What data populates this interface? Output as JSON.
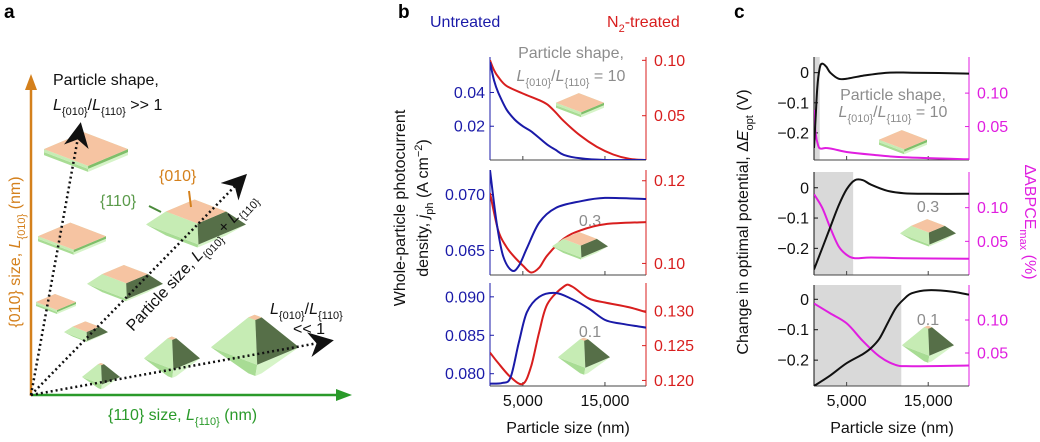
{
  "colors": {
    "blue": "#1a1aa8",
    "red": "#d81e1e",
    "magenta": "#e01ee0",
    "black": "#111111",
    "gray_text": "#8c8c8c",
    "orange": "#d4801c",
    "green": "#2a9a2a",
    "shade": "#d9d9d9",
    "peach": "#f6c4a2",
    "light_green": "#c6ecb4",
    "dark_green": "#566f48"
  },
  "panels": {
    "a": "a",
    "b": "b",
    "c": "c"
  },
  "panel_a": {
    "y_axis_label": [
      [
        "{010} size, ",
        ""
      ],
      [
        "L",
        "i"
      ],
      [
        "{010}",
        "sub"
      ],
      [
        " (nm)",
        ""
      ]
    ],
    "x_axis_label": [
      [
        "{110} size, ",
        ""
      ],
      [
        "L",
        "i"
      ],
      [
        "{110}",
        "sub"
      ],
      [
        " (nm)",
        ""
      ]
    ],
    "shape_title": "Particle shape,",
    "ratio_high": [
      [
        "L",
        "i"
      ],
      [
        "{010}",
        "sub"
      ],
      [
        "/",
        ""
      ],
      [
        "L",
        "i"
      ],
      [
        "{110}",
        "sub"
      ],
      [
        " >> 1",
        ""
      ]
    ],
    "facet_010": "{010}",
    "facet_110": "{110}",
    "size_arrow_label": [
      [
        "Particle size, ",
        ""
      ],
      [
        "L",
        "i"
      ],
      [
        "{010}",
        "sub"
      ],
      [
        " + ",
        ""
      ],
      [
        "L",
        "i"
      ],
      [
        "{110}",
        "sub"
      ]
    ],
    "ratio_low_1": [
      [
        "L",
        "i"
      ],
      [
        "{010}",
        "sub"
      ],
      [
        "/",
        ""
      ],
      [
        "L",
        "i"
      ],
      [
        "{110}",
        "sub"
      ]
    ],
    "ratio_low_2": "<< 1"
  },
  "chart_data": [
    {
      "panel": "b",
      "type": "line",
      "legend": [
        "Untreated",
        "N2-treated"
      ],
      "legend_rich": [
        [
          [
            "Untreated",
            ""
          ]
        ],
        [
          [
            "N",
            ""
          ],
          [
            "2",
            "sub"
          ],
          [
            "-treated",
            ""
          ]
        ]
      ],
      "ylabel_line1": "Whole-particle photocurrent",
      "ylabel_line2": [
        [
          "density, ",
          ""
        ],
        [
          "j",
          "i"
        ],
        [
          "ph",
          "sub"
        ],
        [
          " (A cm",
          ""
        ],
        [
          "−2",
          "sup"
        ],
        [
          ")",
          ""
        ]
      ],
      "xlabel": "Particle size (nm)",
      "xlim": [
        1000,
        20000
      ],
      "xticks": [
        5000,
        15000
      ],
      "xtick_labels": [
        "5,000",
        "15,000"
      ],
      "shape_title": "Particle shape,",
      "shape_ratio": [
        [
          "L",
          "i"
        ],
        [
          "{010}",
          "sub"
        ],
        [
          "/",
          ""
        ],
        [
          "L",
          "i"
        ],
        [
          "{110}",
          "sub"
        ],
        [
          " = 10",
          ""
        ]
      ],
      "subplots": [
        {
          "shape_ratio_value": "10",
          "left": {
            "name": "Untreated",
            "ylim": [
              0,
              0.061
            ],
            "ticks": [
              0.02,
              0.04
            ],
            "tick_labels": [
              "0.02",
              "0.04"
            ]
          },
          "right": {
            "name": "N2-treated",
            "ylim": [
              0.01,
              0.103
            ],
            "ticks": [
              0.05,
              0.1
            ],
            "tick_labels": [
              "0.05",
              "0.10"
            ]
          },
          "left_series": {
            "x": [
              1000,
              1500,
              2000,
              3000,
              4000,
              5000,
              6000,
              7000,
              8000,
              9000,
              10000,
              12000,
              15000,
              20000
            ],
            "y": [
              0.058,
              0.047,
              0.04,
              0.03,
              0.024,
              0.02,
              0.017,
              0.013,
              0.009,
              0.006,
              0.003,
              0.001,
              0.0,
              0.0
            ]
          },
          "right_series": {
            "x": [
              1000,
              1500,
              2000,
              3000,
              5000,
              7000,
              8000,
              9000,
              10000,
              12000,
              14000,
              16000,
              18000,
              20000
            ],
            "y": [
              0.1,
              0.091,
              0.085,
              0.077,
              0.07,
              0.064,
              0.06,
              0.053,
              0.045,
              0.032,
              0.022,
              0.015,
              0.011,
              0.01
            ]
          }
        },
        {
          "shape_ratio_value": "0.3",
          "left": {
            "name": "Untreated",
            "ylim": [
              0.0628,
              0.0722
            ],
            "ticks": [
              0.065,
              0.07
            ],
            "tick_labels": [
              "0.065",
              "0.070"
            ]
          },
          "right": {
            "name": "N2-treated",
            "ylim": [
              0.0972,
              0.1226
            ],
            "ticks": [
              0.1,
              0.12
            ],
            "tick_labels": [
              "0.10",
              "0.12"
            ]
          },
          "left_series": {
            "x": [
              1000,
              1800,
              2600,
              3650,
              4500,
              5500,
              7000,
              9000,
              12000,
              15000,
              20000
            ],
            "y": [
              0.0722,
              0.0675,
              0.0645,
              0.0632,
              0.0636,
              0.0652,
              0.0675,
              0.0688,
              0.0694,
              0.0697,
              0.0696
            ]
          },
          "right_series": {
            "x": [
              1000,
              2000,
              3000,
              4000,
              5000,
              6000,
              7000,
              8000,
              10000,
              12000,
              15000,
              20000
            ],
            "y": [
              0.117,
              0.108,
              0.104,
              0.1015,
              0.0995,
              0.0978,
              0.099,
              0.102,
              0.106,
              0.108,
              0.1095,
              0.11
            ]
          }
        },
        {
          "shape_ratio_value": "0.1",
          "left": {
            "name": "Untreated",
            "ylim": [
              0.0784,
              0.0918
            ],
            "ticks": [
              0.08,
              0.085,
              0.09
            ],
            "tick_labels": [
              "0.080",
              "0.085",
              "0.090"
            ]
          },
          "right": {
            "name": "N2-treated",
            "ylim": [
              0.1192,
              0.134
            ],
            "ticks": [
              0.12,
              0.125,
              0.13
            ],
            "tick_labels": [
              "0.120",
              "0.125",
              "0.130"
            ]
          },
          "left_series": {
            "x": [
              1000,
              2500,
              3500,
              4500,
              5500,
              7000,
              9000,
              11000,
              13000,
              15000,
              17000,
              20000
            ],
            "y": [
              0.0787,
              0.0788,
              0.0795,
              0.084,
              0.088,
              0.09,
              0.0905,
              0.0897,
              0.0885,
              0.087,
              0.0865,
              0.086
            ]
          },
          "right_series": {
            "x": [
              1000,
              2000,
              3500,
              5000,
              6000,
              7000,
              8000,
              10000,
              11000,
              13000,
              15000,
              18000,
              20000
            ],
            "y": [
              0.124,
              0.1225,
              0.1205,
              0.1195,
              0.122,
              0.127,
              0.131,
              0.1335,
              0.1335,
              0.1318,
              0.1312,
              0.1305,
              0.1298
            ]
          }
        }
      ]
    },
    {
      "panel": "c",
      "type": "line",
      "ylabel_left": [
        [
          "Change in optimal potential, Δ",
          ""
        ],
        [
          "E",
          "i"
        ],
        [
          "opt",
          "sub"
        ],
        [
          " (V)",
          ""
        ]
      ],
      "ylabel_right": [
        [
          "ΔABPCE",
          ""
        ],
        [
          "max",
          "sub"
        ],
        [
          " (%)",
          ""
        ]
      ],
      "xlabel": "Particle size (nm)",
      "xlim": [
        1000,
        20000
      ],
      "xticks": [
        5000,
        15000
      ],
      "xtick_labels": [
        "5,000",
        "15,000"
      ],
      "shape_title": "Particle shape,",
      "shape_ratio": [
        [
          "L",
          "i"
        ],
        [
          "{010}",
          "sub"
        ],
        [
          "/",
          ""
        ],
        [
          "L",
          "i"
        ],
        [
          "{110}",
          "sub"
        ],
        [
          " = 10",
          ""
        ]
      ],
      "subplots": [
        {
          "shape_ratio_value": "10",
          "shade_until": 1700,
          "left": {
            "name": "ΔE_opt",
            "ylim": [
              -0.29,
              0.052
            ],
            "ticks": [
              -0.2,
              -0.1,
              0
            ],
            "tick_labels": [
              "−0.2",
              "−0.1",
              "0"
            ]
          },
          "right": {
            "name": "ΔABPCE_max",
            "ylim": [
              0,
              0.154
            ],
            "ticks": [
              0.05,
              0.1
            ],
            "tick_labels": [
              "0.05",
              "0.10"
            ]
          },
          "left_series": {
            "x": [
              1000,
              1200,
              1400,
              1700,
              2000,
              2500,
              3000,
              4000,
              5000,
              7000,
              10000,
              13000,
              20000
            ],
            "y": [
              -0.25,
              -0.15,
              -0.05,
              0.015,
              0.03,
              0.02,
              0.0,
              -0.02,
              -0.02,
              -0.01,
              0.0,
              0.0,
              -0.003
            ]
          },
          "right_series": {
            "x": [
              1000,
              1200,
              1500,
              1800,
              2500,
              3500,
              5000,
              8000,
              12000,
              20000
            ],
            "y": [
              0.075,
              0.04,
              0.022,
              0.017,
              0.018,
              0.016,
              0.012,
              0.008,
              0.004,
              0.001
            ]
          }
        },
        {
          "shape_ratio_value": "0.3",
          "shade_until": 5800,
          "left": {
            "name": "ΔE_opt",
            "ylim": [
              -0.288,
              0.052
            ],
            "ticks": [
              -0.2,
              -0.1,
              0
            ],
            "tick_labels": [
              "−0.2",
              "−0.1",
              "0"
            ]
          },
          "right": {
            "name": "ΔABPCE_max",
            "ylim": [
              0,
              0.153
            ],
            "ticks": [
              0.05,
              0.1
            ],
            "tick_labels": [
              "0.05",
              "0.10"
            ]
          },
          "left_series": {
            "x": [
              1000,
              2000,
              3000,
              4000,
              5000,
              6000,
              7000,
              8000,
              10000,
              12000,
              15000,
              20000
            ],
            "y": [
              -0.27,
              -0.2,
              -0.13,
              -0.06,
              -0.005,
              0.025,
              0.025,
              0.01,
              -0.01,
              -0.018,
              -0.02,
              -0.02
            ]
          },
          "right_series": {
            "x": [
              1000,
              2000,
              3000,
              4000,
              5000,
              6000,
              8000,
              12000,
              20000
            ],
            "y": [
              0.12,
              0.1,
              0.07,
              0.043,
              0.03,
              0.025,
              0.026,
              0.025,
              0.024
            ]
          }
        },
        {
          "shape_ratio_value": "0.1",
          "shade_until": 11700,
          "left": {
            "name": "ΔE_opt",
            "ylim": [
              -0.285,
              0.047
            ],
            "ticks": [
              -0.2,
              -0.1,
              0
            ],
            "tick_labels": [
              "−0.2",
              "−0.1",
              "0"
            ]
          },
          "right": {
            "name": "ΔABPCE_max",
            "ylim": [
              0,
              0.153
            ],
            "ticks": [
              0.05,
              0.1
            ],
            "tick_labels": [
              "0.05",
              "0.10"
            ]
          },
          "left_series": {
            "x": [
              1000,
              3000,
              5000,
              7000,
              8000,
              9000,
              10000,
              11000,
              12000,
              13000,
              15000,
              18000,
              20000
            ],
            "y": [
              -0.285,
              -0.25,
              -0.21,
              -0.18,
              -0.16,
              -0.13,
              -0.08,
              -0.03,
              0.0,
              0.02,
              0.03,
              0.025,
              0.015
            ]
          },
          "right_series": {
            "x": [
              1000,
              3000,
              5000,
              7000,
              9000,
              11000,
              13000,
              20000
            ],
            "y": [
              0.125,
              0.11,
              0.095,
              0.068,
              0.045,
              0.032,
              0.03,
              0.031
            ]
          }
        }
      ]
    }
  ]
}
